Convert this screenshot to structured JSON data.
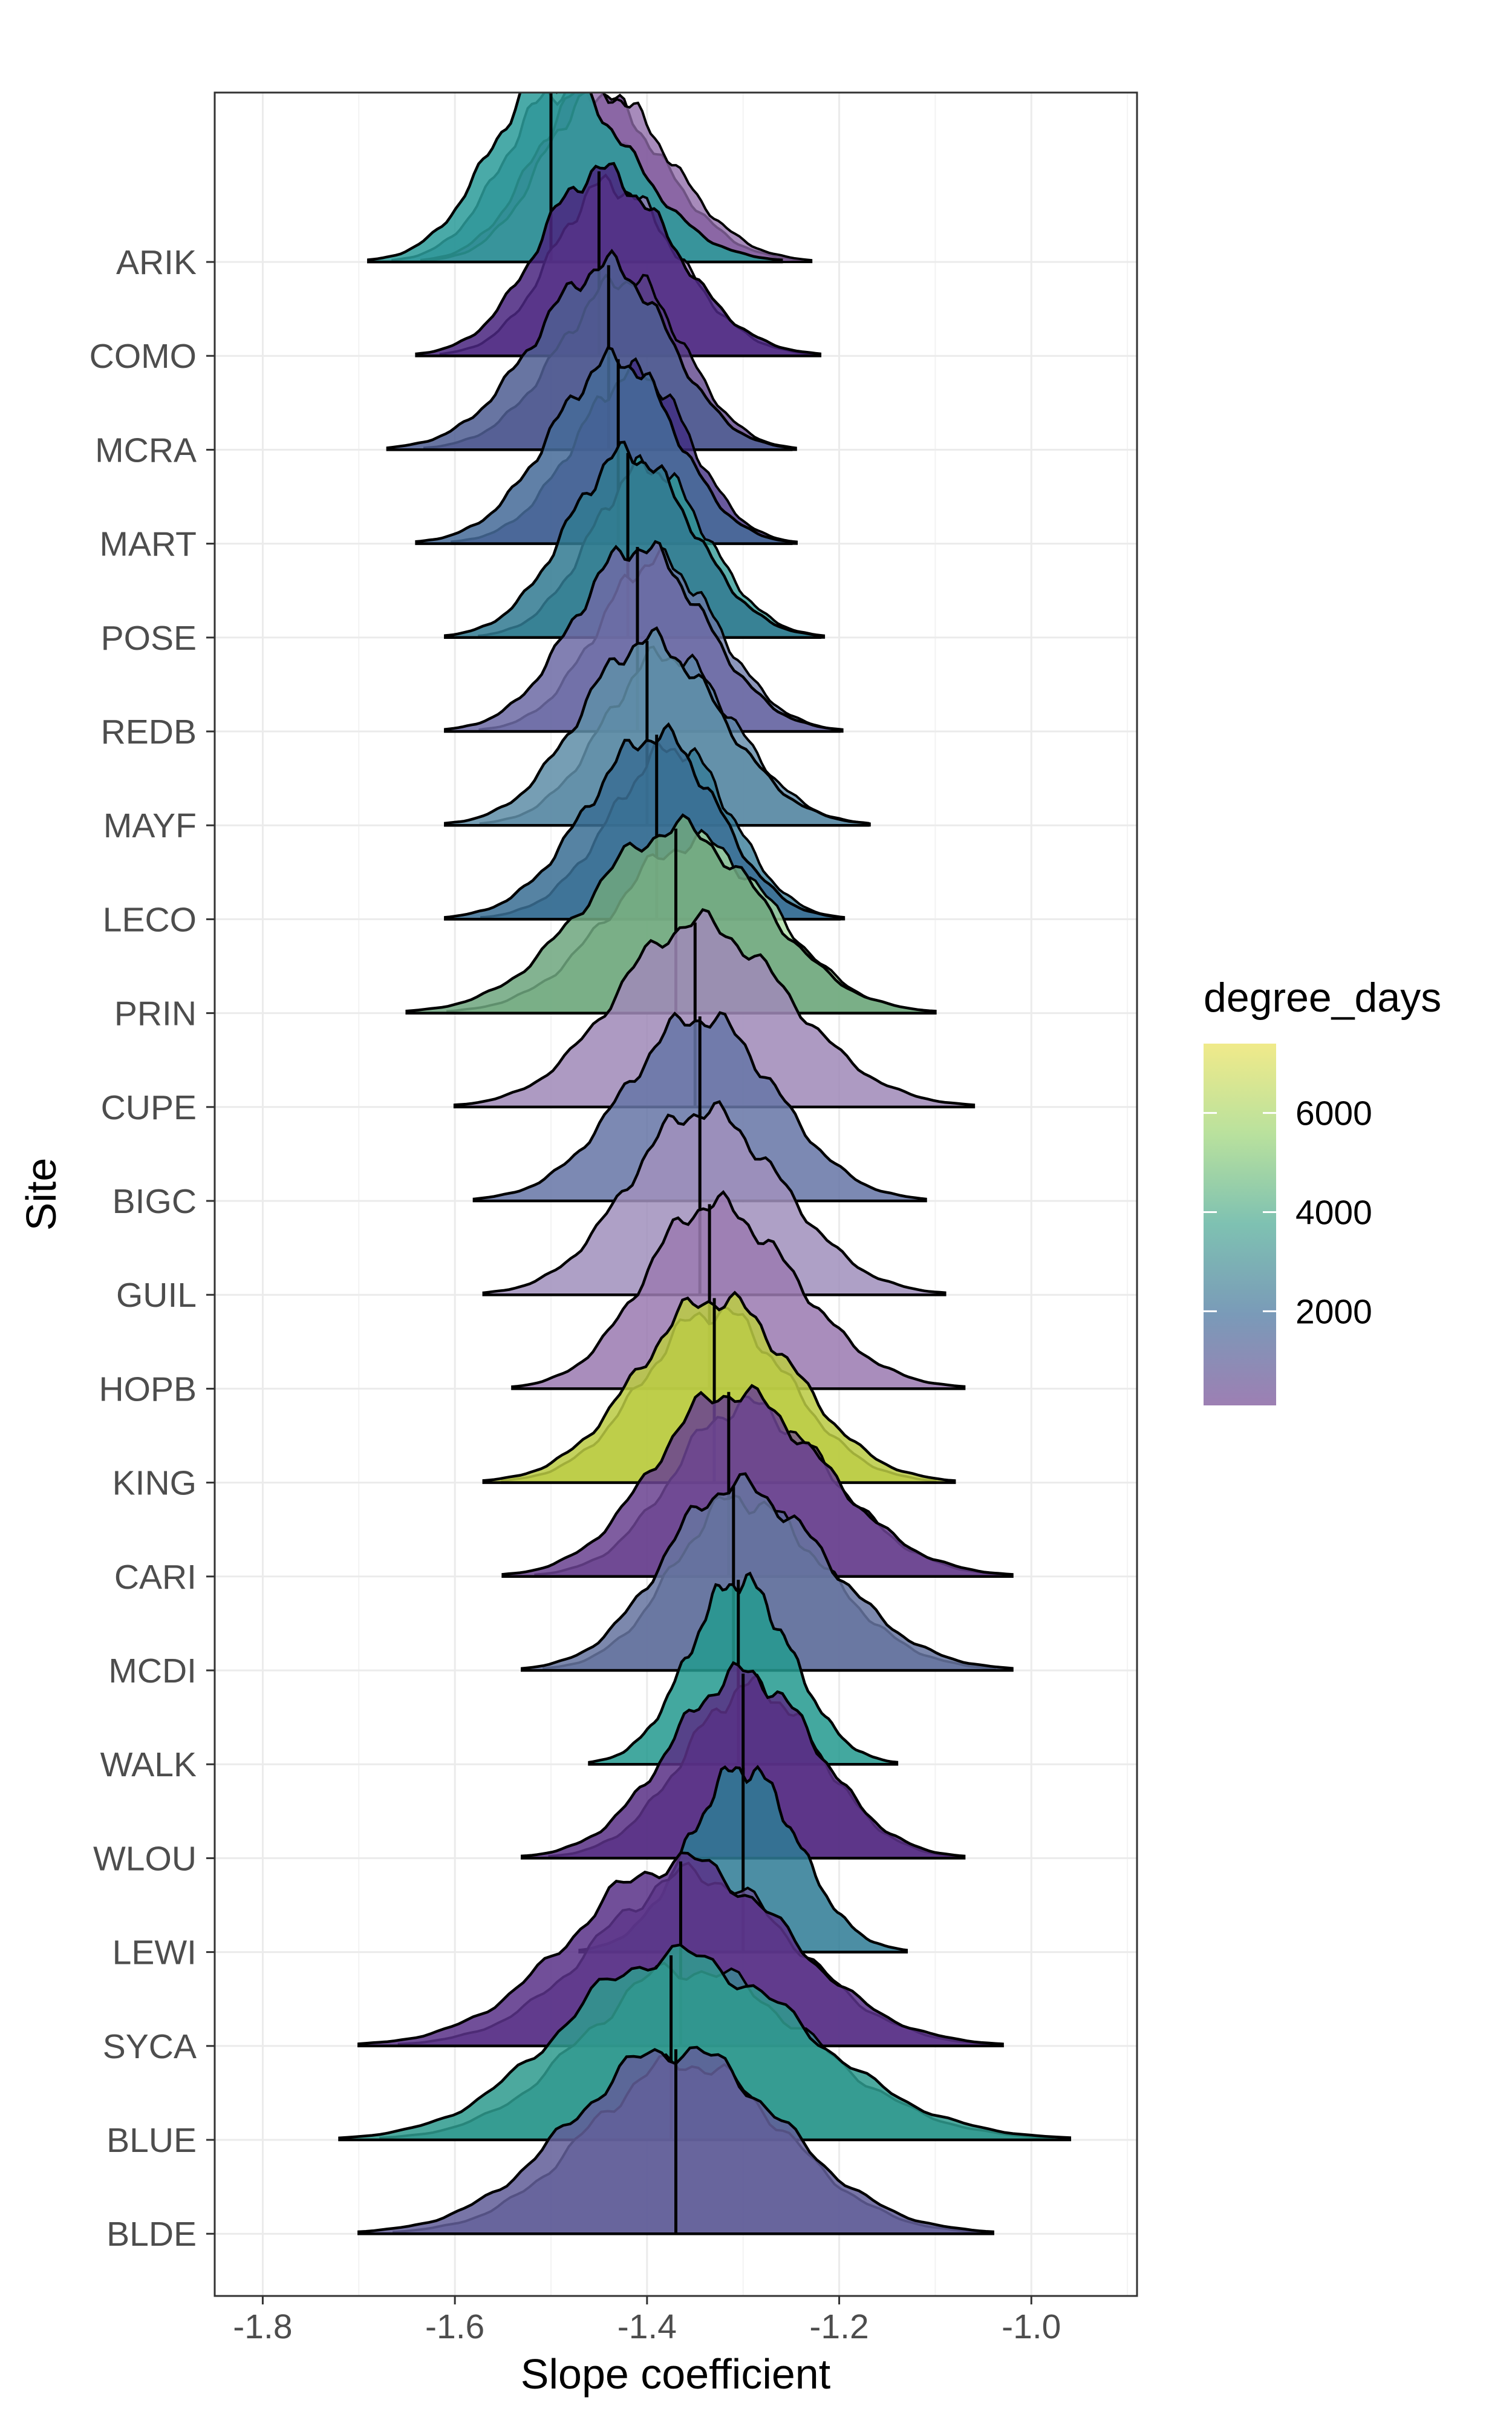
{
  "chart_data": {
    "type": "ridgeline",
    "title": "",
    "xlabel": "Slope coefficient",
    "ylabel": "Site",
    "xlim": [
      -1.85,
      -0.89
    ],
    "x_ticks": [
      -1.8,
      -1.6,
      -1.4,
      -1.2,
      -1.0
    ],
    "x_tick_labels": [
      "-1.8",
      "-1.6",
      "-1.4",
      "-1.2",
      "-1.0"
    ],
    "grid": true,
    "legend": {
      "title": "degree_days",
      "position": "right",
      "range": [
        100,
        7400
      ],
      "ticks": [
        2000,
        4000,
        6000
      ],
      "tick_labels": [
        "2000",
        "4000",
        "6000"
      ],
      "colors": [
        "#9D7FB3",
        "#7A9AB8",
        "#7EC1B2",
        "#B9E19D",
        "#F0EA8A"
      ]
    },
    "series": [
      {
        "site": "ARIK",
        "median": -1.5,
        "min": -1.69,
        "max": -1.26,
        "color": "#2C9C9A",
        "overlays": [
          {
            "median": -1.49,
            "color": "#3A6A92"
          },
          {
            "median": -1.46,
            "color": "#5B2C7E"
          },
          {
            "median": -1.45,
            "color": "#8E6AA8"
          }
        ]
      },
      {
        "site": "COMO",
        "median": -1.45,
        "min": -1.64,
        "max": -1.22,
        "color": "#4A2680",
        "overlays": [
          {
            "median": -1.44,
            "color": "#9A7AB6"
          }
        ]
      },
      {
        "site": "MCRA",
        "median": -1.44,
        "min": -1.67,
        "max": -1.25,
        "color": "#4F5E93",
        "overlays": [
          {
            "median": -1.42,
            "color": "#5A3F88"
          }
        ]
      },
      {
        "site": "MART",
        "median": -1.43,
        "min": -1.64,
        "max": -1.25,
        "color": "#466B98",
        "overlays": [
          {
            "median": -1.41,
            "color": "#3F2A80"
          }
        ]
      },
      {
        "site": "POSE",
        "median": -1.42,
        "min": -1.61,
        "max": -1.22,
        "color": "#327A92",
        "overlays": [
          {
            "median": -1.4,
            "color": "#2E9A95"
          }
        ]
      },
      {
        "site": "REDB",
        "median": -1.41,
        "min": -1.61,
        "max": -1.2,
        "color": "#6E6BA5",
        "overlays": [
          {
            "median": -1.39,
            "color": "#6B7AA8"
          }
        ]
      },
      {
        "site": "MAYF",
        "median": -1.4,
        "min": -1.61,
        "max": -1.17,
        "color": "#5F8EA8",
        "overlays": [
          {
            "median": -1.38,
            "color": "#5B87A6"
          }
        ]
      },
      {
        "site": "LECO",
        "median": -1.39,
        "min": -1.61,
        "max": -1.2,
        "color": "#3A6F94",
        "overlays": [
          {
            "median": -1.37,
            "color": "#337A96"
          }
        ]
      },
      {
        "site": "PRIN",
        "median": -1.37,
        "min": -1.65,
        "max": -1.1,
        "color": "#6FA67F",
        "overlays": [
          {
            "median": -1.35,
            "color": "#A9DBA1"
          }
        ]
      },
      {
        "site": "CUPE",
        "median": -1.35,
        "min": -1.6,
        "max": -1.06,
        "color": "#A089B8",
        "overlays": []
      },
      {
        "site": "BIGC",
        "median": -1.345,
        "min": -1.58,
        "max": -1.11,
        "color": "#6776A6",
        "overlays": []
      },
      {
        "site": "GUIL",
        "median": -1.345,
        "min": -1.57,
        "max": -1.09,
        "color": "#A190BD",
        "overlays": []
      },
      {
        "site": "HOPB",
        "median": -1.335,
        "min": -1.54,
        "max": -1.07,
        "color": "#9B7AB1",
        "overlays": []
      },
      {
        "site": "KING",
        "median": -1.33,
        "min": -1.57,
        "max": -1.08,
        "color": "#BACB43",
        "overlays": [
          {
            "median": -1.33,
            "color": "#C7D64B"
          }
        ]
      },
      {
        "site": "CARI",
        "median": -1.315,
        "min": -1.55,
        "max": -1.02,
        "color": "#6A4290",
        "overlays": [
          {
            "median": -1.3,
            "color": "#73528F"
          }
        ]
      },
      {
        "site": "MCDI",
        "median": -1.31,
        "min": -1.53,
        "max": -1.02,
        "color": "#66749F",
        "overlays": [
          {
            "median": -1.305,
            "color": "#5F6C9E"
          }
        ]
      },
      {
        "site": "WALK",
        "median": -1.305,
        "min": -1.46,
        "max": -1.14,
        "color": "#249A8F",
        "overlays": []
      },
      {
        "site": "WLOU",
        "median": -1.3,
        "min": -1.53,
        "max": -1.07,
        "color": "#5A3186",
        "overlays": [
          {
            "median": -1.29,
            "color": "#4A2A7D"
          }
        ]
      },
      {
        "site": "LEWI",
        "median": -1.3,
        "min": -1.47,
        "max": -1.13,
        "color": "#2E7C95",
        "overlays": []
      },
      {
        "site": "SYCA",
        "median": -1.365,
        "min": -1.7,
        "max": -1.03,
        "color": "#5A3288",
        "overlays": [
          {
            "median": -1.35,
            "color": "#6A4E93"
          }
        ]
      },
      {
        "site": "BLUE",
        "median": -1.375,
        "min": -1.72,
        "max": -0.96,
        "color": "#2E9B8E",
        "overlays": [
          {
            "median": -1.36,
            "color": "#3A8C94"
          }
        ]
      },
      {
        "site": "BLDE",
        "median": -1.37,
        "min": -1.7,
        "max": -1.04,
        "color": "#625E99",
        "overlays": [
          {
            "median": -1.36,
            "color": "#6A6AA4"
          }
        ]
      }
    ]
  }
}
